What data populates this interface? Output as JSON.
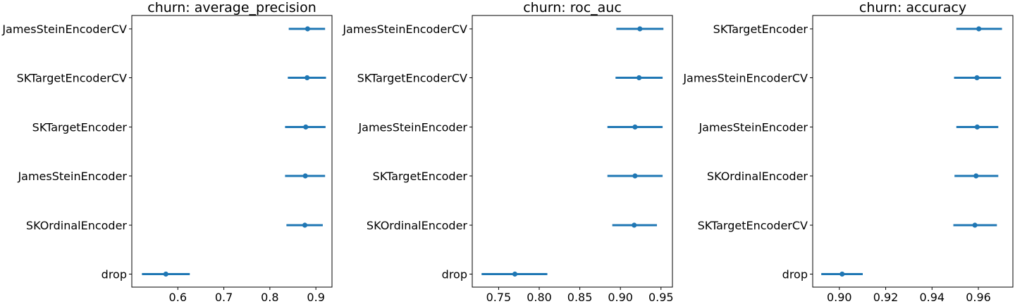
{
  "chart_data": [
    {
      "type": "scatter",
      "title": "churn: average_precision",
      "xlabel": "",
      "ylabel": "",
      "xlim": [
        0.5,
        0.935
      ],
      "xticks": [
        "0.6",
        "0.7",
        "0.8",
        "0.9"
      ],
      "xtick_values": [
        0.6,
        0.7,
        0.8,
        0.9
      ],
      "grid": false,
      "color": "#1f77b4",
      "categories": [
        "JamesSteinEncoderCV",
        "SKTargetEncoderCV",
        "SKTargetEncoder",
        "JamesSteinEncoder",
        "SKOrdinalEncoder",
        "drop"
      ],
      "values": [
        0.882,
        0.881,
        0.878,
        0.877,
        0.876,
        0.574
      ],
      "lower": [
        0.841,
        0.839,
        0.833,
        0.833,
        0.836,
        0.522
      ],
      "upper": [
        0.92,
        0.922,
        0.921,
        0.92,
        0.915,
        0.626
      ]
    },
    {
      "type": "scatter",
      "title": "churn: roc_auc",
      "xlabel": "",
      "ylabel": "",
      "xlim": [
        0.7175,
        0.9641
      ],
      "xticks": [
        "0.75",
        "0.80",
        "0.85",
        "0.90",
        "0.95"
      ],
      "xtick_values": [
        0.75,
        0.8,
        0.85,
        0.9,
        0.95
      ],
      "grid": false,
      "color": "#1f77b4",
      "categories": [
        "JamesSteinEncoderCV",
        "SKTargetEncoderCV",
        "JamesSteinEncoder",
        "SKTargetEncoder",
        "SKOrdinalEncoder",
        "drop"
      ],
      "values": [
        0.924,
        0.923,
        0.918,
        0.918,
        0.917,
        0.77
      ],
      "lower": [
        0.895,
        0.894,
        0.884,
        0.884,
        0.89,
        0.729
      ],
      "upper": [
        0.953,
        0.952,
        0.952,
        0.952,
        0.945,
        0.81
      ]
    },
    {
      "type": "scatter",
      "title": "churn: accuracy",
      "xlabel": "",
      "ylabel": "",
      "xlim": [
        0.8885,
        0.9749
      ],
      "xticks": [
        "0.90",
        "0.92",
        "0.94",
        "0.96"
      ],
      "xtick_values": [
        0.9,
        0.92,
        0.94,
        0.96
      ],
      "grid": false,
      "color": "#1f77b4",
      "categories": [
        "SKTargetEncoder",
        "JamesSteinEncoderCV",
        "JamesSteinEncoder",
        "SKOrdinalEncoder",
        "SKTargetEncoderCV",
        "drop"
      ],
      "values": [
        0.9602,
        0.9594,
        0.9595,
        0.959,
        0.9585,
        0.9012
      ],
      "lower": [
        0.9505,
        0.9495,
        0.9505,
        0.9497,
        0.9492,
        0.8922
      ],
      "upper": [
        0.9702,
        0.9698,
        0.9686,
        0.9686,
        0.968,
        0.9101
      ]
    }
  ]
}
